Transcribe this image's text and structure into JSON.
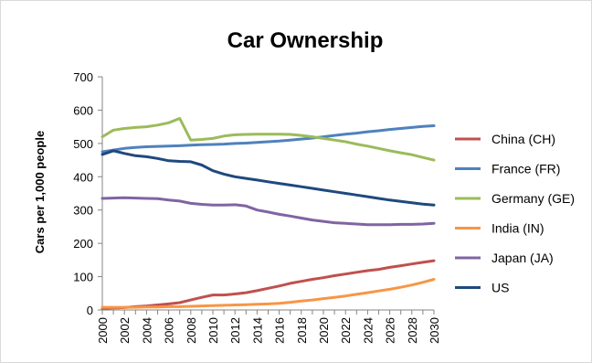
{
  "chart_data": {
    "type": "line",
    "title": "Car Ownership",
    "xlabel": "",
    "ylabel": "Cars per 1,000 people",
    "ylim": [
      0,
      700
    ],
    "yticks": [
      0,
      100,
      200,
      300,
      400,
      500,
      600,
      700
    ],
    "xlim": [
      2000,
      2030
    ],
    "xticks": [
      "2000",
      "2002",
      "2004",
      "2006",
      "2008",
      "2010",
      "2012",
      "2014",
      "2016",
      "2018",
      "2020",
      "2022",
      "2024",
      "2026",
      "2028",
      "2030"
    ],
    "grid": false,
    "legend_position": "right",
    "x": [
      2000,
      2001,
      2002,
      2003,
      2004,
      2005,
      2006,
      2007,
      2008,
      2009,
      2010,
      2011,
      2012,
      2013,
      2014,
      2015,
      2016,
      2017,
      2018,
      2019,
      2020,
      2021,
      2022,
      2023,
      2024,
      2025,
      2026,
      2027,
      2028,
      2029,
      2030
    ],
    "series": [
      {
        "name": "China (CH)",
        "color": "#c0504d",
        "values": [
          5,
          6,
          7,
          10,
          12,
          15,
          18,
          22,
          30,
          38,
          45,
          45,
          48,
          52,
          58,
          65,
          72,
          80,
          86,
          92,
          97,
          103,
          108,
          113,
          118,
          122,
          128,
          133,
          138,
          143,
          148
        ]
      },
      {
        "name": "France (FR)",
        "color": "#4f81bd",
        "values": [
          475,
          480,
          485,
          488,
          490,
          491,
          492,
          493,
          495,
          496,
          497,
          498,
          500,
          501,
          503,
          505,
          507,
          510,
          513,
          516,
          520,
          524,
          528,
          531,
          535,
          538,
          542,
          545,
          548,
          551,
          553
        ]
      },
      {
        "name": "Germany (GE)",
        "color": "#9bbb59",
        "values": [
          520,
          540,
          545,
          548,
          550,
          555,
          562,
          575,
          510,
          512,
          515,
          522,
          526,
          527,
          528,
          528,
          528,
          527,
          524,
          520,
          515,
          510,
          505,
          498,
          492,
          485,
          478,
          472,
          466,
          458,
          450
        ]
      },
      {
        "name": "India (IN)",
        "color": "#f79646",
        "values": [
          8,
          8,
          8,
          8,
          9,
          9,
          10,
          10,
          11,
          12,
          13,
          14,
          15,
          16,
          17,
          18,
          20,
          23,
          27,
          30,
          34,
          38,
          42,
          47,
          52,
          57,
          62,
          68,
          75,
          83,
          92
        ]
      },
      {
        "name": "Japan (JA)",
        "color": "#8064a2",
        "values": [
          335,
          336,
          337,
          336,
          335,
          334,
          330,
          327,
          320,
          317,
          315,
          315,
          316,
          312,
          300,
          294,
          287,
          282,
          276,
          270,
          266,
          262,
          260,
          258,
          256,
          256,
          256,
          257,
          257,
          258,
          260
        ]
      },
      {
        "name": "US",
        "color": "#1f497d",
        "values": [
          467,
          478,
          470,
          463,
          460,
          455,
          448,
          446,
          445,
          435,
          418,
          408,
          400,
          395,
          390,
          385,
          380,
          375,
          370,
          365,
          360,
          355,
          350,
          345,
          340,
          335,
          330,
          326,
          322,
          318,
          315
        ]
      }
    ]
  }
}
